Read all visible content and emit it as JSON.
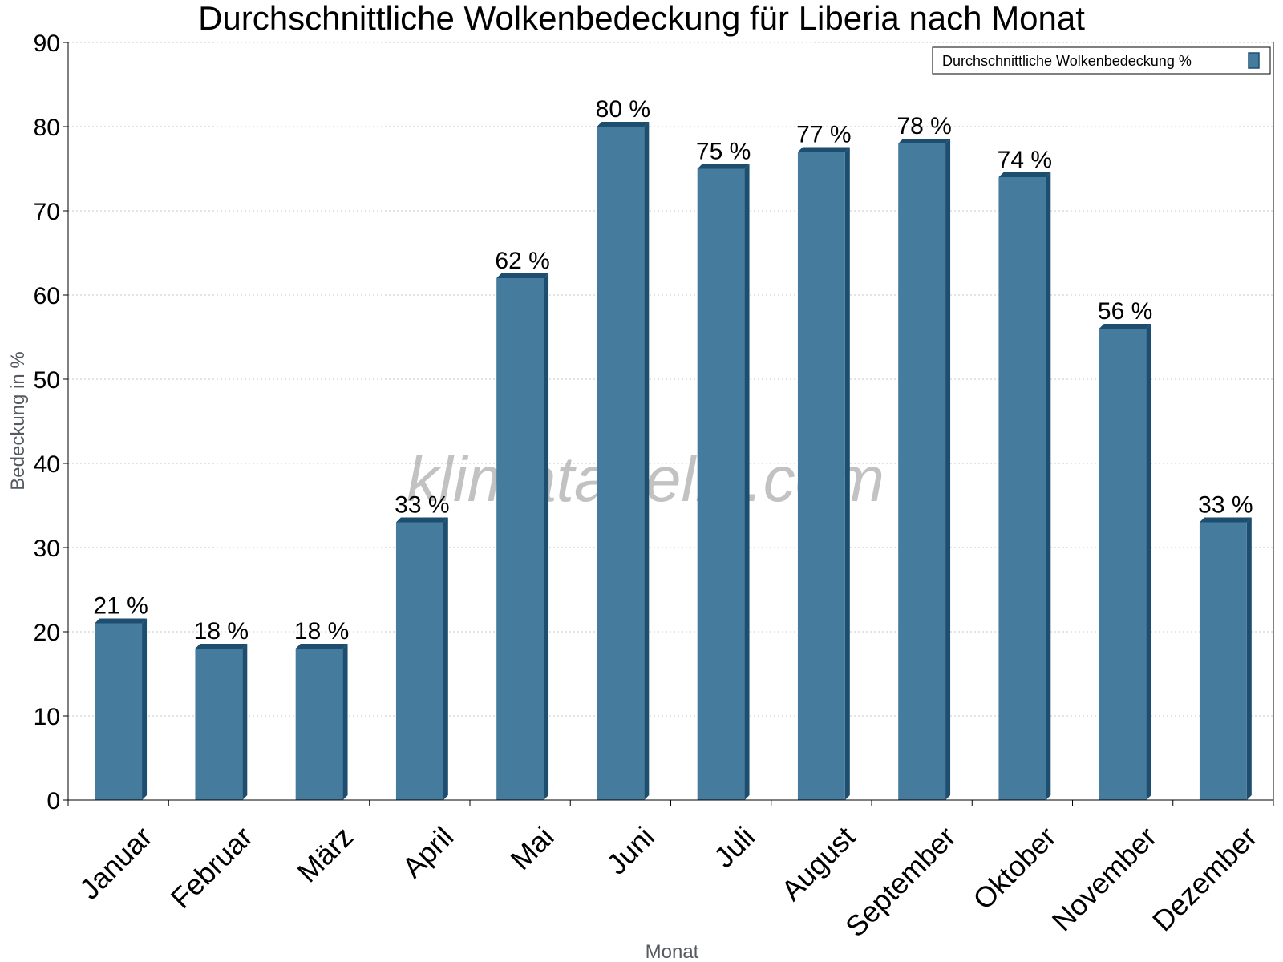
{
  "chart_data": {
    "type": "bar",
    "title": "Durchschnittliche Wolkenbedeckung für Liberia nach Monat",
    "xlabel": "Monat",
    "ylabel": "Bedeckung in %",
    "ylim": [
      0,
      90
    ],
    "yticks": [
      0,
      10,
      20,
      30,
      40,
      50,
      60,
      70,
      80,
      90
    ],
    "grid": true,
    "legend_position": "top-right",
    "categories": [
      "Januar",
      "Februar",
      "März",
      "April",
      "Mai",
      "Juni",
      "Juli",
      "August",
      "September",
      "Oktober",
      "November",
      "Dezember"
    ],
    "series": [
      {
        "name": "Durchschnittliche Wolkenbedeckung %",
        "values": [
          21,
          18,
          18,
          33,
          62,
          80,
          75,
          77,
          78,
          74,
          56,
          33
        ],
        "labels": [
          "21 %",
          "18 %",
          "18 %",
          "33 %",
          "62 %",
          "80 %",
          "75 %",
          "77 %",
          "78 %",
          "74 %",
          "56 %",
          "33 %"
        ],
        "color": "#457b9d",
        "side_color": "#1d4e6f"
      }
    ],
    "watermark": "klimatabelle.com"
  }
}
